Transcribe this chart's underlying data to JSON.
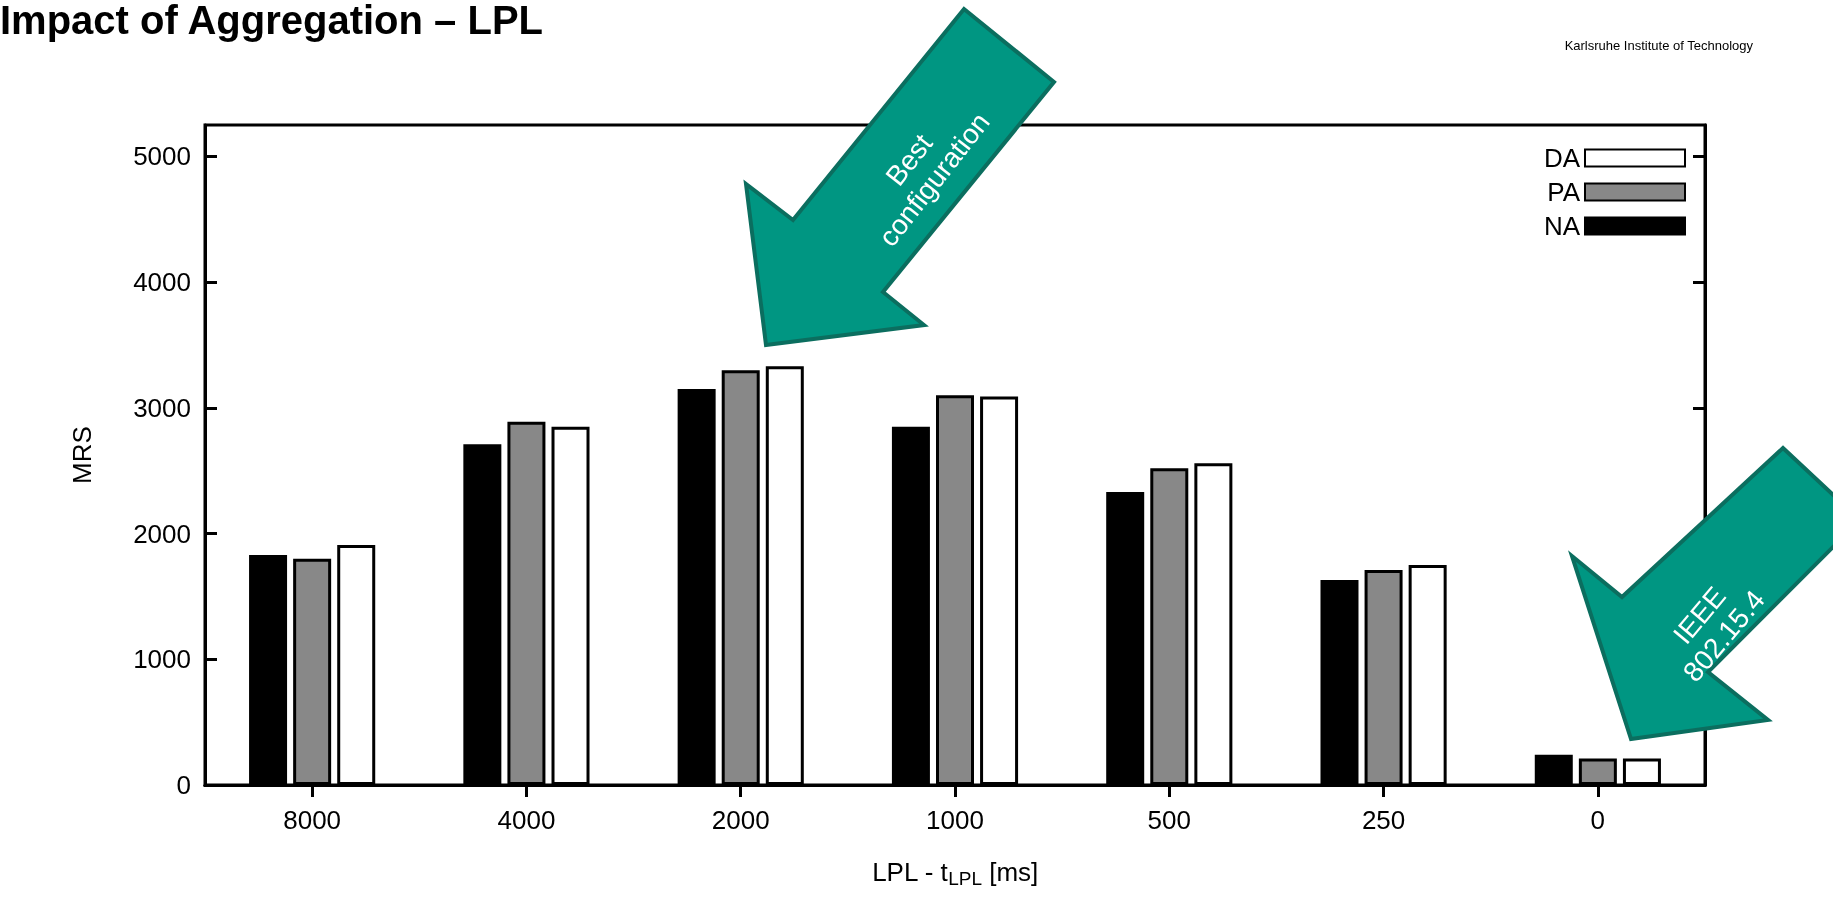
{
  "chart_data": {
    "type": "bar",
    "title": "Impact of Aggregation – LPL",
    "xlabel": "LPL - t$_{LPL}$ [ms]",
    "ylabel": "MRS",
    "categories": [
      "8000",
      "4000",
      "2000",
      "1000",
      "500",
      "250",
      "0"
    ],
    "series": [
      {
        "name": "NA",
        "color": "#000000",
        "values": [
          1830,
          2710,
          3150,
          2850,
          2330,
          1630,
          240
        ]
      },
      {
        "name": "PA",
        "color": "#888888",
        "values": [
          1800,
          2890,
          3300,
          3100,
          2520,
          1710,
          210
        ]
      },
      {
        "name": "DA",
        "color": "#ffffff",
        "values": [
          1910,
          2850,
          3330,
          3090,
          2560,
          1750,
          210
        ]
      }
    ],
    "ylim": [
      0,
      5250
    ],
    "yticks": [
      0,
      1000,
      2000,
      3000,
      4000,
      5000
    ],
    "grid": false,
    "legend": "top right",
    "annotations": [
      "Best configuration",
      "IEEE 802.15.4",
      "Karlsruhe Institute of Technology"
    ]
  }
}
